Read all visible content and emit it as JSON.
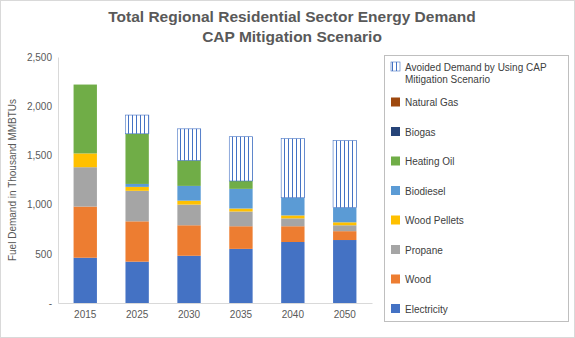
{
  "chart_data": {
    "type": "bar",
    "stacked": true,
    "title": "Total Regional Residential Sector Energy Demand",
    "subtitle": "CAP Mitigation Scenario",
    "y_label": "Fuel Demand in Thousand MMBTUs",
    "categories": [
      "2015",
      "2025",
      "2030",
      "2035",
      "2040",
      "2050"
    ],
    "ylim": [
      0,
      2500
    ],
    "yticks": [
      {
        "value": 0,
        "label": "-"
      },
      500,
      {
        "value": 1000,
        "label": "1,000"
      },
      {
        "value": 1500,
        "label": "1,500"
      },
      {
        "value": 2000,
        "label": "2,000"
      },
      {
        "value": 2500,
        "label": "2,500"
      }
    ],
    "grid": false,
    "legend": "right",
    "series": [
      {
        "name": "Electricity",
        "color": "#4472c4",
        "values": [
          460,
          420,
          480,
          550,
          620,
          640
        ]
      },
      {
        "name": "Wood",
        "color": "#ed7d31",
        "values": [
          520,
          410,
          310,
          230,
          160,
          90
        ]
      },
      {
        "name": "Propane",
        "color": "#a5a5a5",
        "values": [
          400,
          310,
          210,
          150,
          80,
          60
        ]
      },
      {
        "name": "Wood Pellets",
        "color": "#ffc000",
        "values": [
          140,
          40,
          40,
          30,
          30,
          30
        ]
      },
      {
        "name": "Biodiesel",
        "color": "#5b9bd5",
        "values": [
          0,
          30,
          150,
          200,
          180,
          150
        ]
      },
      {
        "name": "Heating Oil",
        "color": "#70ad47",
        "values": [
          700,
          510,
          260,
          80,
          0,
          0
        ]
      },
      {
        "name": "Biogas",
        "color": "#264478",
        "values": [
          0,
          0,
          0,
          0,
          0,
          0
        ]
      },
      {
        "name": "Natural Gas",
        "color": "#9e480e",
        "values": [
          0,
          0,
          0,
          0,
          0,
          0
        ]
      },
      {
        "name": "Avoided Demand by Using CAP Mitigation Scenario",
        "color": "#4472c4",
        "marker": "hatch",
        "values": [
          0,
          190,
          320,
          450,
          600,
          680
        ]
      }
    ]
  }
}
